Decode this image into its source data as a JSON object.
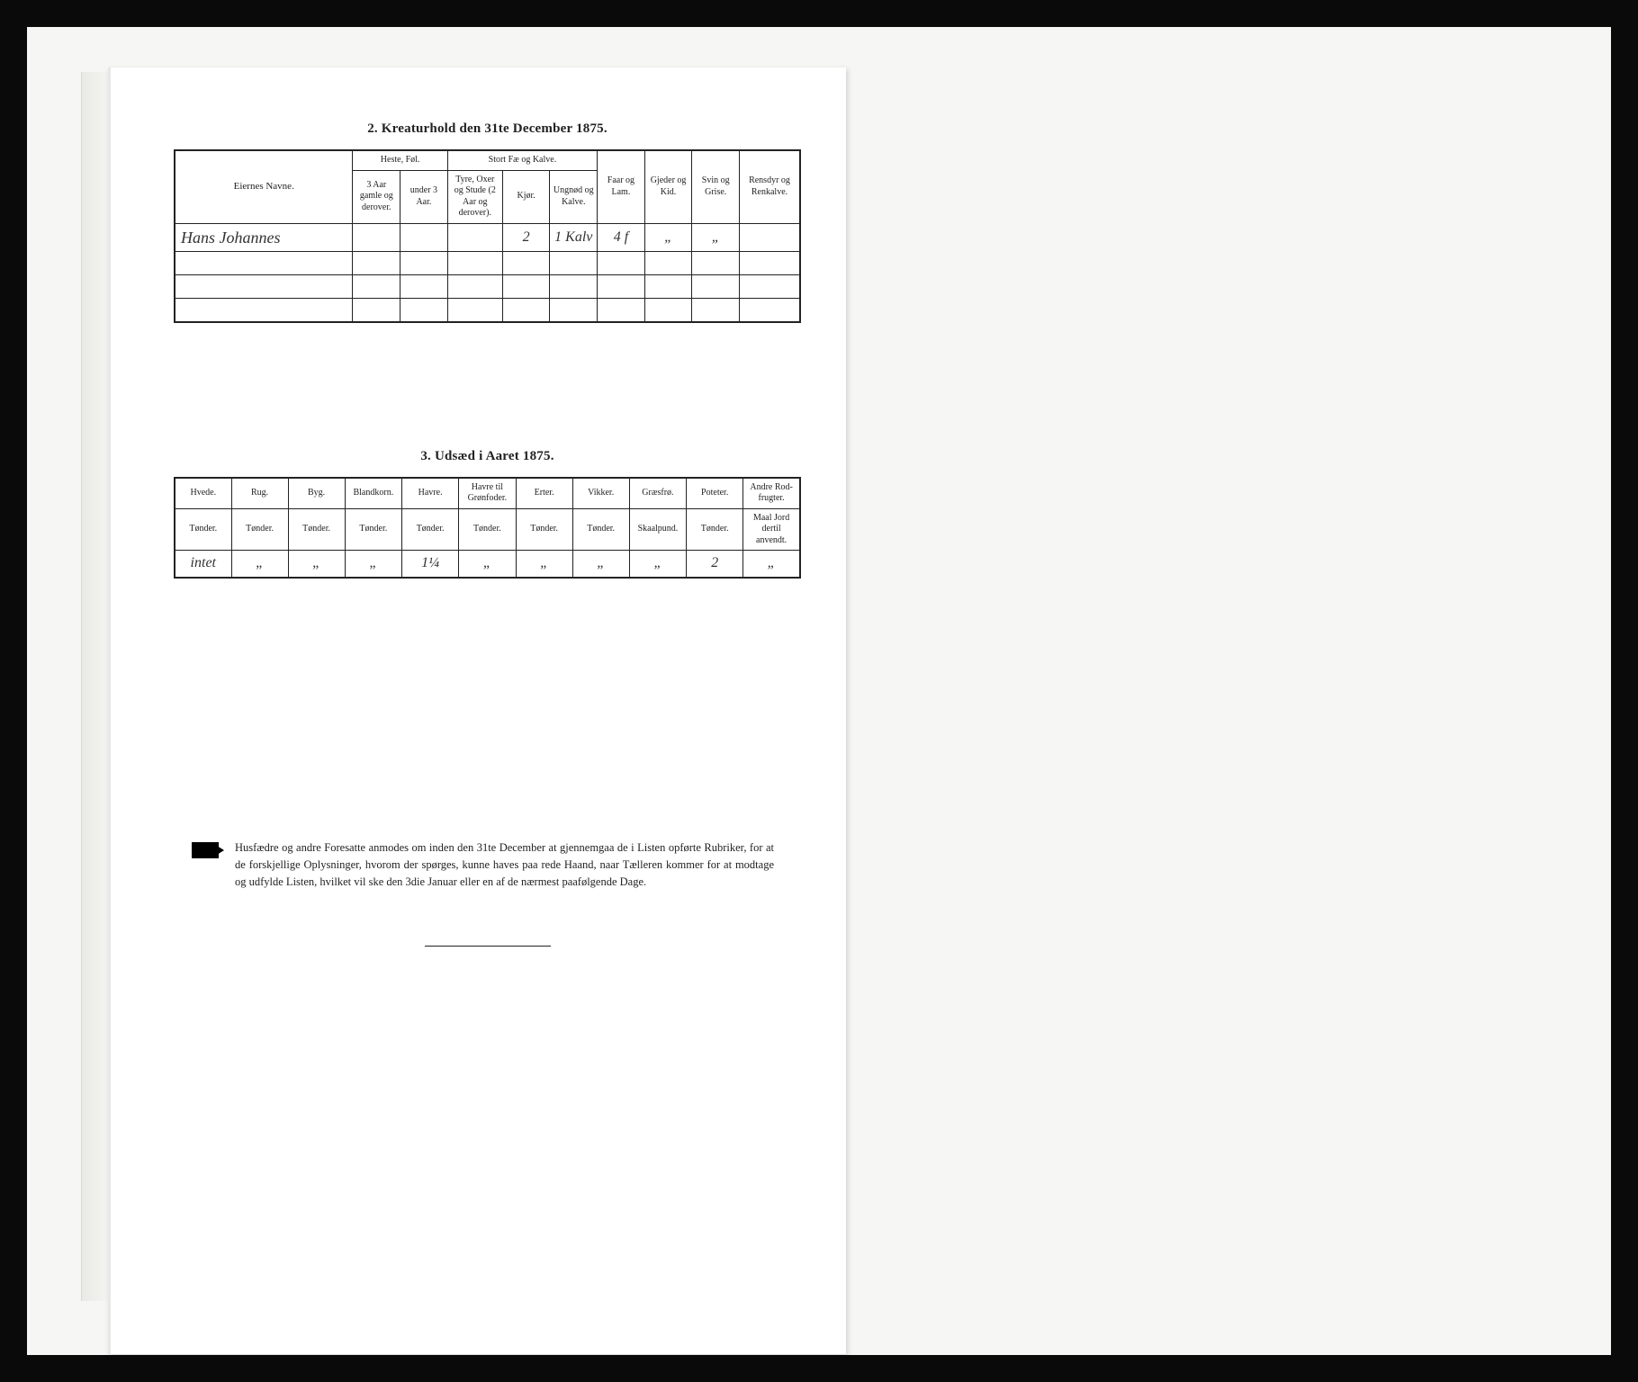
{
  "section2": {
    "title": "2.  Kreaturhold den 31te December 1875.",
    "headers": {
      "name": "Eiernes Navne.",
      "heste_group": "Heste, Føl.",
      "heste_a": "3 Aar gamle og derover.",
      "heste_b": "under 3 Aar.",
      "stort_group": "Stort Fæ og Kalve.",
      "stort_a": "Tyre, Oxer og Stude (2 Aar og derover).",
      "stort_b": "Kjør.",
      "stort_c": "Ungnød og Kalve.",
      "faar": "Faar og Lam.",
      "gjeder": "Gjeder og Kid.",
      "svin": "Svin og Grise.",
      "rensdyr": "Rensdyr og Renkalve."
    },
    "row": {
      "name": "Hans Johannes",
      "heste_a": "",
      "heste_b": "",
      "stort_a": "",
      "stort_b": "2",
      "stort_c": "1 Kalv",
      "faar": "4 f",
      "gjeder": "„",
      "svin": "„",
      "rensdyr": ""
    }
  },
  "section3": {
    "title": "3.  Udsæd i Aaret 1875.",
    "headers": {
      "hvede": "Hvede.",
      "rug": "Rug.",
      "byg": "Byg.",
      "blandkorn": "Blandkorn.",
      "havre": "Havre.",
      "havre_gron": "Havre til Grønfoder.",
      "erter": "Erter.",
      "vikker": "Vikker.",
      "graesfro": "Græsfrø.",
      "poteter": "Poteter.",
      "andre": "Andre Rod-frugter."
    },
    "units": {
      "tonder": "Tønder.",
      "skaalpund": "Skaalpund.",
      "andre": "Maal Jord dertil anvendt."
    },
    "row": {
      "hvede": "intet",
      "rug": "„",
      "byg": "„",
      "blandkorn": "„",
      "havre": "1¼",
      "havre_gron": "„",
      "erter": "„",
      "vikker": "„",
      "graesfro": "„",
      "poteter": "2",
      "andre": "„"
    }
  },
  "note": "Husfædre og andre Foresatte anmodes om inden den 31te December at gjennemgaa de i Listen opførte Rubriker, for at de forskjellige Oplysninger, hvorom der spørges, kunne haves paa rede Haand, naar Tælleren kommer for at modtage og udfylde Listen, hvilket vil ske den 3die Januar eller en af de nærmest paafølgende Dage."
}
